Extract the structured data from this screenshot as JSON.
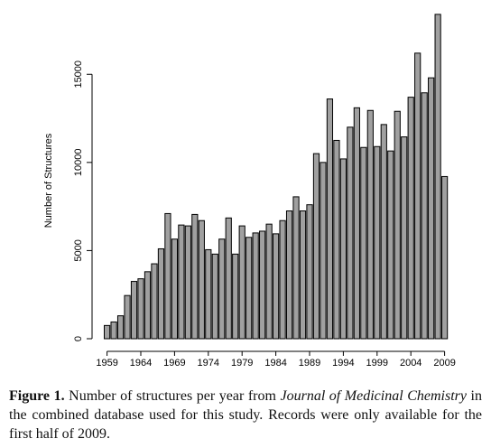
{
  "chart_data": {
    "type": "bar",
    "ylabel": "Number of Structures",
    "xlabel": "",
    "ylim": [
      0,
      18600
    ],
    "y_ticks": [
      0,
      5000,
      10000,
      15000
    ],
    "x_tick_labels": [
      "1959",
      "1964",
      "1969",
      "1974",
      "1979",
      "1984",
      "1989",
      "1994",
      "1999",
      "2004",
      "2009"
    ],
    "bar_color": "#a0a0a0",
    "grid": false,
    "categories": [
      "1959",
      "1960",
      "1961",
      "1962",
      "1963",
      "1964",
      "1965",
      "1966",
      "1967",
      "1968",
      "1969",
      "1970",
      "1971",
      "1972",
      "1973",
      "1974",
      "1975",
      "1976",
      "1977",
      "1978",
      "1979",
      "1980",
      "1981",
      "1982",
      "1983",
      "1984",
      "1985",
      "1986",
      "1987",
      "1988",
      "1989",
      "1990",
      "1991",
      "1992",
      "1993",
      "1994",
      "1995",
      "1996",
      "1997",
      "1998",
      "1999",
      "2000",
      "2001",
      "2002",
      "2003",
      "2004",
      "2005",
      "2006",
      "2007",
      "2008",
      "2009"
    ],
    "values": [
      750,
      950,
      1300,
      2450,
      3250,
      3400,
      3800,
      4250,
      5100,
      7100,
      5650,
      6450,
      6400,
      7050,
      6700,
      5050,
      4800,
      5650,
      6850,
      4800,
      6400,
      5750,
      6000,
      6100,
      6500,
      5950,
      6700,
      7250,
      8050,
      7250,
      7600,
      10500,
      10000,
      13600,
      11250,
      10200,
      12000,
      13100,
      10850,
      12950,
      10900,
      12150,
      10650,
      12900,
      11450,
      13700,
      16200,
      13950,
      14800,
      18400,
      9200
    ]
  },
  "caption": {
    "label": "Figure 1.",
    "text_before": " Number of structures per year from ",
    "journal": "Journal of Medicinal Chemistry",
    "text_after": " in the combined database used for this study. Records were only available for the first half of 2009."
  }
}
